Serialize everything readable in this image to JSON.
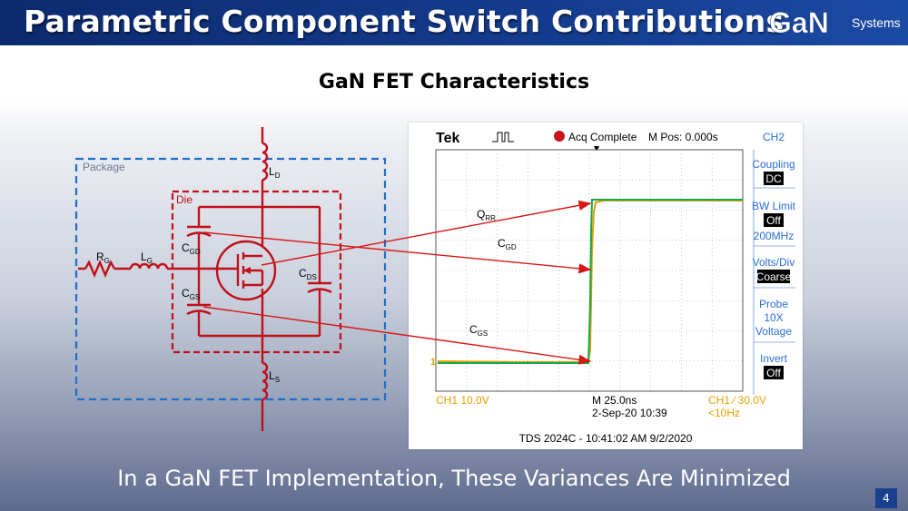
{
  "header": {
    "title": "Parametric Component Switch Contributions"
  },
  "logo": {
    "brand": "GaN",
    "sub": "Systems"
  },
  "subtitle": "GaN FET Characteristics",
  "circuit": {
    "package_label": "Package",
    "die_label": "Die",
    "labels": {
      "rg": "R",
      "rg_sub": "G",
      "lg": "L",
      "lg_sub": "G",
      "ld": "L",
      "ld_sub": "D",
      "ls": "L",
      "ls_sub": "S",
      "cgd": "C",
      "cgd_sub": "GD",
      "cgs": "C",
      "cgs_sub": "GS",
      "cds": "C",
      "cds_sub": "DS"
    },
    "colors": {
      "circuit": "#c0101a",
      "package_border": "#1f6fc8",
      "die_border": "#c0101a"
    }
  },
  "scope": {
    "brand": "Tek",
    "status": "Acq Complete",
    "mpos": "M Pos: 0.000s",
    "menu": {
      "ch": "CH2",
      "coupling": "Coupling",
      "coupling_val": "DC",
      "bw": "BW Limit",
      "bw_val": "Off",
      "bw_freq": "200MHz",
      "volts": "Volts/Div",
      "volts_val": "Coarse",
      "probe": "Probe",
      "probe_x": "10X",
      "probe_type": "Voltage",
      "invert": "Invert",
      "invert_val": "Off"
    },
    "ch_marker": "1",
    "bottom": {
      "ch1": "CH1  10.0V",
      "timebase": "M 25.0ns",
      "date": "2-Sep-20 10:39",
      "trigger": "CH1 ∕ 30.0V",
      "freq": "<10Hz"
    },
    "caption": "TDS 2024C - 10:41:02 AM   9/2/2020",
    "labels": {
      "qrr": "Q",
      "qrr_sub": "RR",
      "cgd": "C",
      "cgd_sub": "GD",
      "cgs": "C",
      "cgs_sub": "GS"
    },
    "colors": {
      "ch1": "#e0a000",
      "ch2": "#1aa64a",
      "arrows": "#d81818",
      "menu": "#2b6fd6"
    }
  },
  "footer": "In a GaN FET Implementation, These Variances Are Minimized",
  "page_number": "4"
}
